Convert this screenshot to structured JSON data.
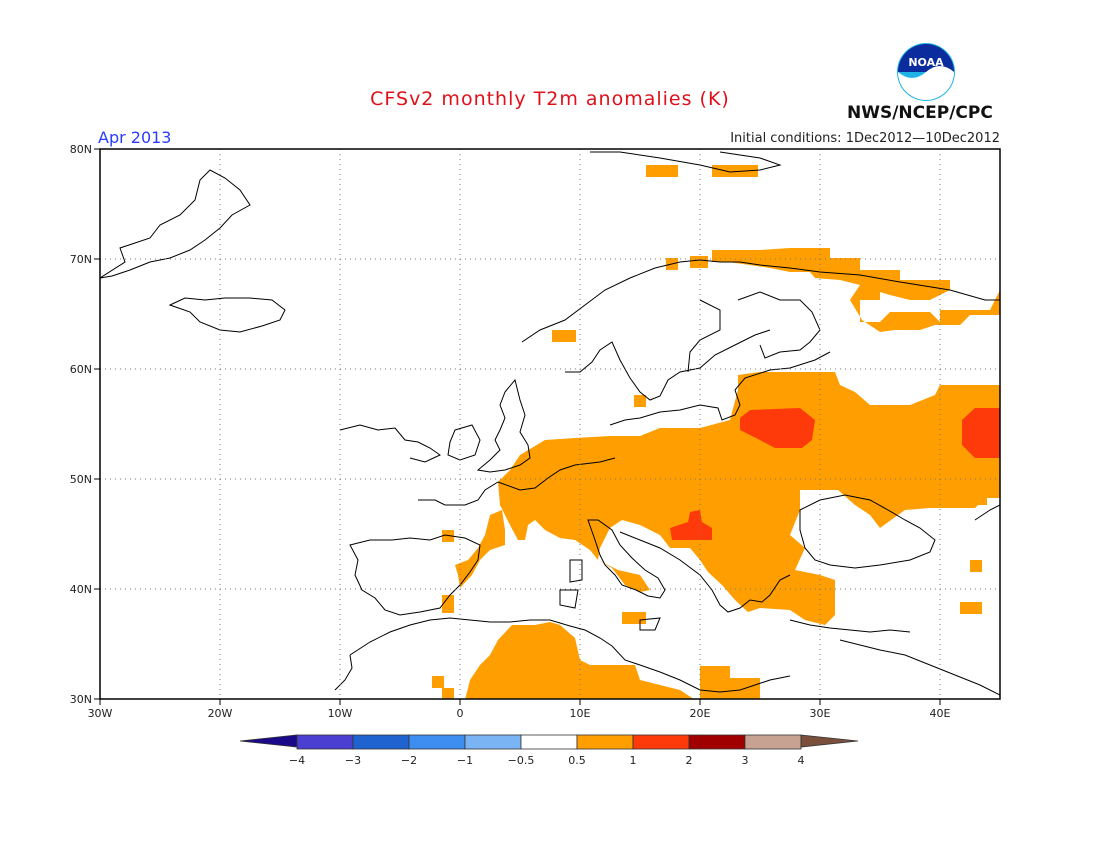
{
  "header": {
    "title": "CFSv2 monthly T2m anomalies (K)",
    "period": "Apr 2013",
    "initial_conditions": "Initial conditions: 1Dec2012—10Dec2012",
    "agency": "NWS/NCEP/CPC",
    "logo_text": "NOAA"
  },
  "map": {
    "lat_labels": [
      "80N",
      "70N",
      "60N",
      "50N",
      "40N",
      "30N"
    ],
    "lon_labels": [
      "30W",
      "20W",
      "10W",
      "0",
      "10E",
      "20E",
      "30E",
      "40E"
    ],
    "lat_range": [
      30,
      80
    ],
    "lon_range": [
      -30,
      45
    ],
    "grid": "dotted"
  },
  "colorbar": {
    "labels": [
      "−4",
      "−3",
      "−2",
      "−1",
      "−0.5",
      "0.5",
      "1",
      "2",
      "3",
      "4"
    ],
    "colors": [
      "#1a0a8a",
      "#4b3fd1",
      "#1f63d1",
      "#3d8ef0",
      "#7ab4f5",
      "#ffffff",
      "#ff9e00",
      "#ff3a0a",
      "#a00000",
      "#c7a293",
      "#7a4f3c"
    ]
  },
  "anomaly_colors": {
    "warm_0_5_to_1": "#ff9e00",
    "warm_1_to_2": "#ff3a0a"
  }
}
